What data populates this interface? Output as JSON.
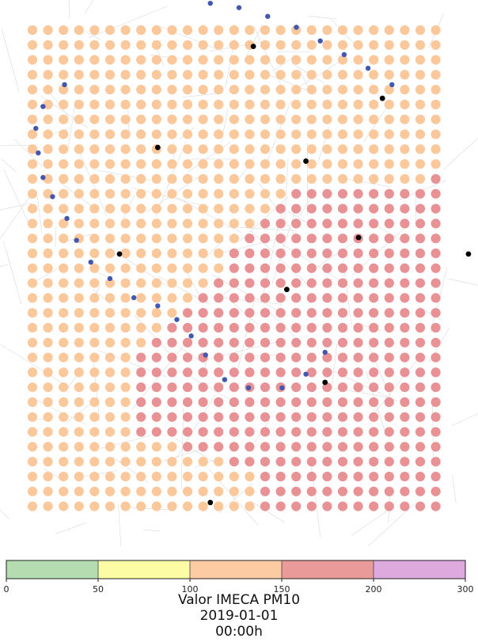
{
  "map": {
    "grid": {
      "cols": 27,
      "rows": 33
    },
    "region_colors": {
      "bueno": "#b2dcae",
      "regular": "#fdfca0",
      "mala": "#fbc597",
      "muy_mala": "#e88c8f",
      "extremadamente_mala": "#dda4dc"
    },
    "district_boundary": [
      [
        0.44,
        0.006
      ],
      [
        0.5,
        0.014
      ],
      [
        0.56,
        0.03
      ],
      [
        0.62,
        0.05
      ],
      [
        0.67,
        0.075
      ],
      [
        0.72,
        0.1
      ],
      [
        0.77,
        0.125
      ],
      [
        0.82,
        0.155
      ],
      [
        0.135,
        0.155
      ],
      [
        0.09,
        0.195
      ],
      [
        0.075,
        0.235
      ],
      [
        0.08,
        0.28
      ],
      [
        0.09,
        0.325
      ],
      [
        0.11,
        0.36
      ],
      [
        0.14,
        0.4
      ],
      [
        0.16,
        0.44
      ],
      [
        0.19,
        0.48
      ],
      [
        0.23,
        0.51
      ],
      [
        0.28,
        0.545
      ],
      [
        0.33,
        0.56
      ],
      [
        0.37,
        0.585
      ],
      [
        0.4,
        0.615
      ],
      [
        0.43,
        0.65
      ],
      [
        0.47,
        0.695
      ],
      [
        0.52,
        0.71
      ],
      [
        0.59,
        0.71
      ],
      [
        0.64,
        0.685
      ],
      [
        0.68,
        0.645
      ]
    ],
    "station_points": [
      [
        0.53,
        0.085
      ],
      [
        0.8,
        0.18
      ],
      [
        0.33,
        0.27
      ],
      [
        0.64,
        0.295
      ],
      [
        0.75,
        0.435
      ],
      [
        0.25,
        0.465
      ],
      [
        0.98,
        0.465
      ],
      [
        0.6,
        0.53
      ],
      [
        0.68,
        0.7
      ],
      [
        0.44,
        0.92
      ]
    ]
  },
  "legend": {
    "min": 0,
    "max": 300,
    "ticks": [
      "0",
      "50",
      "100",
      "150",
      "200",
      "300"
    ],
    "bins": [
      {
        "from": 0,
        "to": 50,
        "color": "#b5dbb1"
      },
      {
        "from": 50,
        "to": 100,
        "color": "#fbfca3"
      },
      {
        "from": 100,
        "to": 150,
        "color": "#fccba3"
      },
      {
        "from": 150,
        "to": 200,
        "color": "#ea9a99"
      },
      {
        "from": 200,
        "to": 300,
        "color": "#dea9dd"
      }
    ],
    "title": "Valor IMECA PM10",
    "date": "2019-01-01",
    "time": "00:00h"
  }
}
